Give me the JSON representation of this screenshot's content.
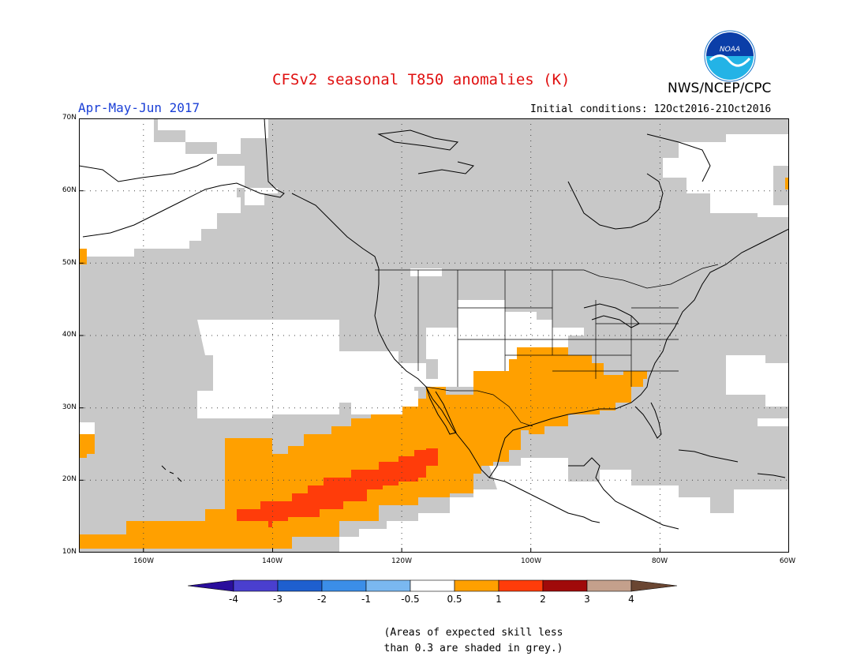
{
  "header": {
    "title": "CFSv2 seasonal T850 anomalies (K)",
    "agency": "NWS/NCEP/CPC",
    "logo_text": "NOAA",
    "season": "Apr-May-Jun 2017",
    "initial_conditions": "Initial conditions: 12Oct2016-21Oct2016"
  },
  "map": {
    "projection": "equirectangular",
    "lon_range": [
      -170,
      -60
    ],
    "lat_range": [
      10,
      70
    ],
    "gridlines": "dotted",
    "lat_labels": [
      "70N",
      "60N",
      "50N",
      "40N",
      "30N",
      "20N",
      "10N"
    ],
    "lon_labels": [
      "160W",
      "140W",
      "120W",
      "100W",
      "80W",
      "60W"
    ],
    "colors": {
      "no_skill_grey": "#c8c8c8",
      "near_normal": "#ffffff",
      "anom_0_5_to_1": "#ffa000",
      "anom_1_to_2": "#ff3c0a",
      "coastline": "#000000"
    }
  },
  "colorbar": {
    "labels": [
      "-4",
      "-3",
      "-2",
      "-1",
      "-0.5",
      "0.5",
      "1",
      "2",
      "3",
      "4"
    ],
    "colors": [
      "#2a0e9c",
      "#4a3fcf",
      "#1e5fcf",
      "#3b8ee8",
      "#7ab8f0",
      "#ffffff",
      "#ffa000",
      "#ff3c0a",
      "#a00a0a",
      "#c4a08c",
      "#6a4632"
    ]
  },
  "note": {
    "line1": "(Areas of expected skill less",
    "line2": "than 0.3 are shaded in grey.)"
  }
}
